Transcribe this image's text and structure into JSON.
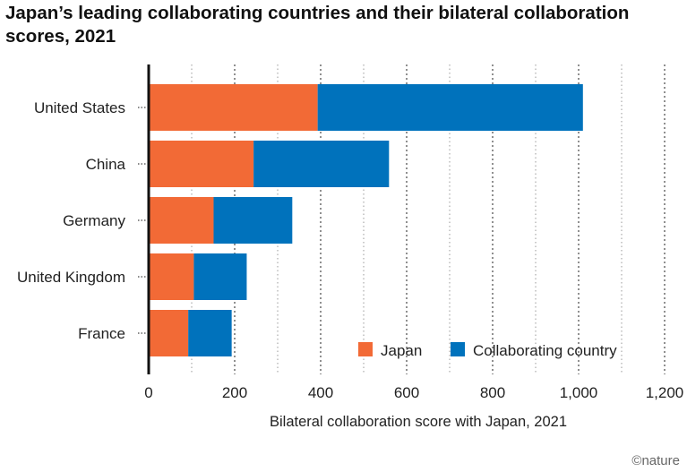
{
  "chart_data": {
    "type": "bar",
    "orientation": "horizontal",
    "stacked": true,
    "title": "Japan’s leading collaborating countries and their bilateral collaboration scores, 2021",
    "categories": [
      "United States",
      "China",
      "Germany",
      "United Kingdom",
      "France"
    ],
    "series": [
      {
        "name": "Japan",
        "color": "#f26a36",
        "values": [
          393,
          244,
          151,
          105,
          92
        ]
      },
      {
        "name": "Collaborating country",
        "color": "#0072bc",
        "values": [
          617,
          315,
          183,
          123,
          101
        ]
      }
    ],
    "xlabel": "Bilateral collaboration score with Japan, 2021",
    "ylabel": "",
    "xlim": [
      0,
      1200
    ],
    "xticks": [
      0,
      200,
      400,
      600,
      800,
      1000,
      1200
    ],
    "xtick_labels": [
      "0",
      "200",
      "400",
      "600",
      "800",
      "1,000",
      "1,200"
    ],
    "grid": true,
    "legend_position": "bottom-right"
  },
  "credit": "©nature"
}
